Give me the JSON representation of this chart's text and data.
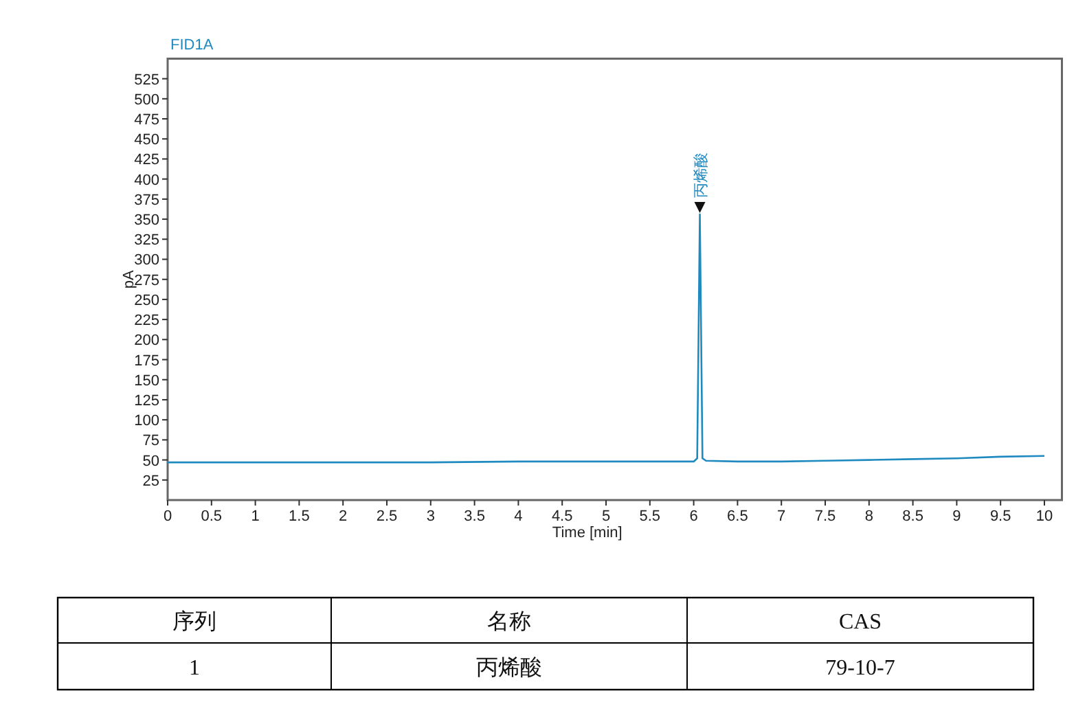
{
  "chart_data": {
    "type": "line",
    "title": "FID1A",
    "xlabel": "Time [min]",
    "ylabel": "pA",
    "x": [
      0,
      1,
      2,
      3,
      4,
      5,
      5.9,
      6.0,
      6.04,
      6.07,
      6.1,
      6.14,
      6.5,
      7,
      7.5,
      8,
      8.5,
      9,
      9.5,
      10
    ],
    "series": [
      {
        "color": "#1f8ac0",
        "values": [
          47,
          47,
          47,
          47,
          48,
          48,
          48,
          48,
          52,
          356,
          52,
          49,
          48,
          48,
          49,
          50,
          51,
          52,
          54,
          55
        ]
      }
    ],
    "xlim": [
      0,
      10.2
    ],
    "ylim": [
      0,
      550
    ],
    "xticks": [
      0,
      {
        "value": 0.5,
        "label": "0.5"
      },
      1,
      {
        "value": 1.5,
        "label": "1.5"
      },
      2,
      {
        "value": 2.5,
        "label": "2.5"
      },
      3,
      {
        "value": 3.5,
        "label": "3.5"
      },
      4,
      {
        "value": 4.5,
        "label": "4.5"
      },
      5,
      {
        "value": 5.5,
        "label": "5.5"
      },
      6,
      {
        "value": 6.5,
        "label": "6.5"
      },
      7,
      {
        "value": 7.5,
        "label": "7.5"
      },
      8,
      {
        "value": 8.5,
        "label": "8.5"
      },
      9,
      {
        "value": 9.5,
        "label": "9.5"
      },
      10
    ],
    "yticks": [
      25,
      50,
      75,
      100,
      125,
      150,
      175,
      200,
      225,
      250,
      275,
      300,
      325,
      350,
      375,
      400,
      425,
      450,
      475,
      500,
      525
    ],
    "annotations": [
      {
        "text": "丙烯酸",
        "x": 6.07,
        "y": 356
      },
      "序列",
      "名称",
      "CAS",
      "1",
      "丙烯酸",
      "79-10-7"
    ]
  }
}
